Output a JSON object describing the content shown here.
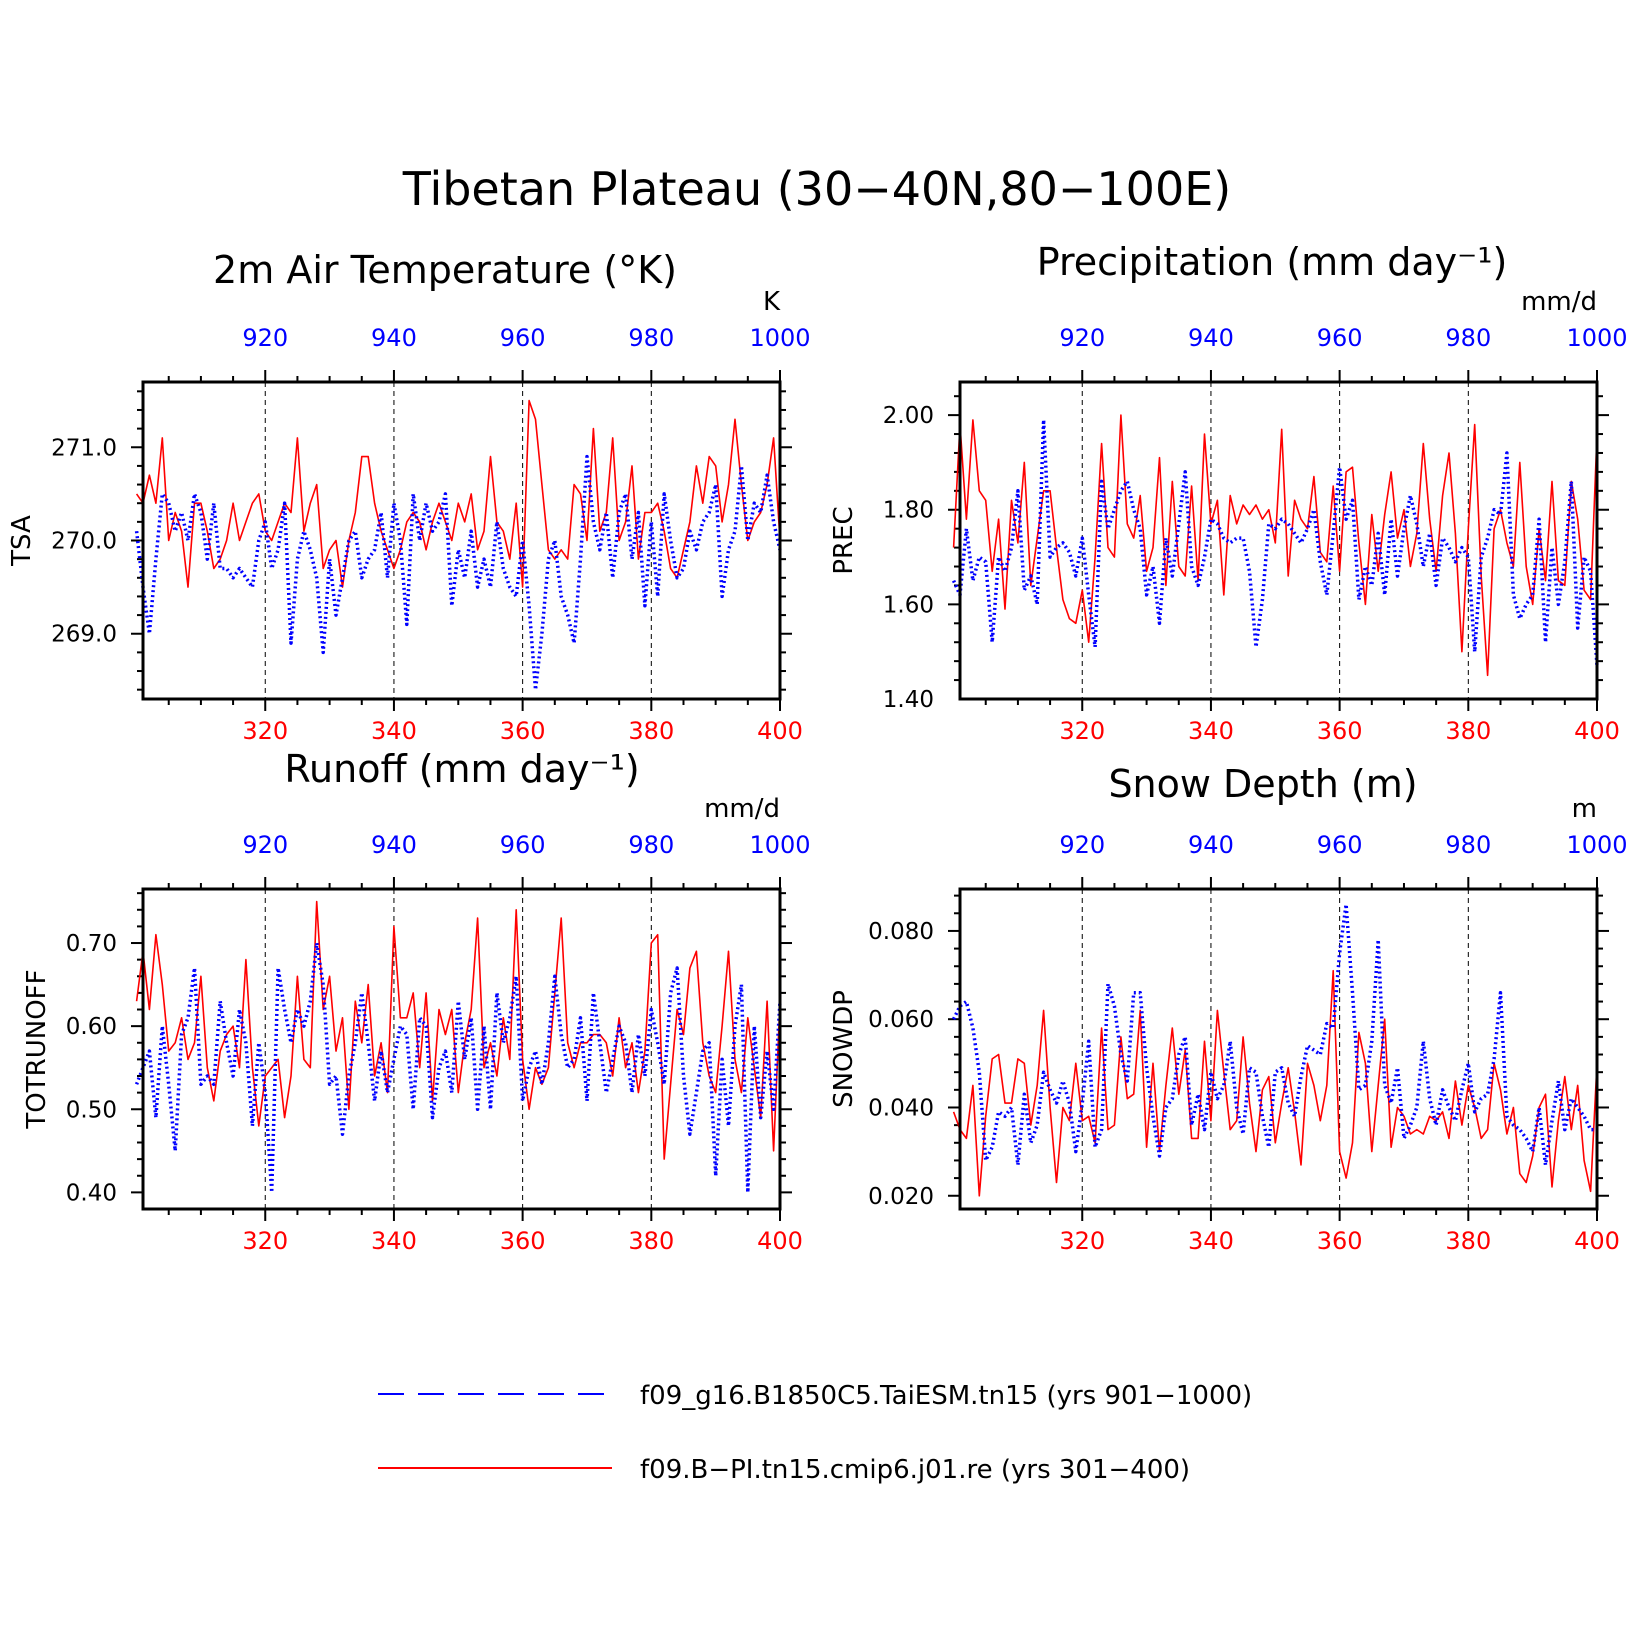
{
  "title": "Tibetan Plateau (30−40N,80−100E)",
  "colors": {
    "red": "#ff0000",
    "blue": "#0000ff",
    "axis": "#000000"
  },
  "legend": {
    "items": [
      {
        "label": "f09_g16.B1850C5.TaiESM.tn15 (yrs 901−1000)",
        "color": "#0000ff",
        "style": "dashed"
      },
      {
        "label": "f09.B−PI.tn15.cmip6.j01.re (yrs 301−400)",
        "color": "#ff0000",
        "style": "solid"
      }
    ]
  },
  "chart_data": [
    {
      "type": "line",
      "title": "2m Air Temperature (°K)",
      "ylabel": "TSA",
      "unit": "K",
      "ylim": [
        268.3,
        271.7
      ],
      "yticks": [
        "269.0",
        "270.0",
        "271.0"
      ],
      "x_bottom": {
        "range": [
          301,
          400
        ],
        "ticks": [
          320,
          340,
          360,
          380,
          400
        ],
        "color": "#ff0000"
      },
      "x_top": {
        "range": [
          901,
          1000
        ],
        "ticks": [
          920,
          940,
          960,
          980,
          1000
        ],
        "color": "#0000ff"
      },
      "series": [
        {
          "name": "f09.B−PI.tn15.cmip6.j01.re (yrs 301−400)",
          "color": "#ff0000",
          "style": "solid",
          "values": [
            270.5,
            270.4,
            270.7,
            270.4,
            271.1,
            270.0,
            270.3,
            270.1,
            269.5,
            270.4,
            270.4,
            270.1,
            269.7,
            269.8,
            270.0,
            270.4,
            270.0,
            270.2,
            270.4,
            270.5,
            270.1,
            270.0,
            270.2,
            270.4,
            270.3,
            271.1,
            270.1,
            270.4,
            270.6,
            269.7,
            269.9,
            270.0,
            269.5,
            270.0,
            270.3,
            270.9,
            270.9,
            270.4,
            270.1,
            269.9,
            269.7,
            269.9,
            270.2,
            270.3,
            270.2,
            269.9,
            270.2,
            270.4,
            270.2,
            270.0,
            270.4,
            270.2,
            270.5,
            269.9,
            270.1,
            270.9,
            270.2,
            270.1,
            269.8,
            270.4,
            269.5,
            271.5,
            271.3,
            270.6,
            269.9,
            269.8,
            269.9,
            269.8,
            270.6,
            270.5,
            270.0,
            271.2,
            270.1,
            270.3,
            271.1,
            270.0,
            270.2,
            270.8,
            269.8,
            270.3,
            270.3,
            270.4,
            270.1,
            269.7,
            269.6,
            269.9,
            270.2,
            270.8,
            270.4,
            270.9,
            270.8,
            270.2,
            270.6,
            271.3,
            270.6,
            270.0,
            270.2,
            270.3,
            270.6,
            271.1,
            270.0
          ]
        },
        {
          "name": "f09_g16.B1850C5.TaiESM.tn15 (yrs 901−1000)",
          "color": "#0000ff",
          "style": "dashed",
          "values": [
            270.1,
            269.5,
            269.0,
            269.8,
            270.5,
            270.4,
            270.1,
            270.3,
            270.0,
            270.5,
            270.3,
            269.8,
            270.4,
            269.7,
            269.7,
            269.6,
            269.7,
            269.6,
            269.5,
            270.0,
            270.2,
            269.7,
            269.9,
            270.4,
            268.9,
            269.8,
            270.1,
            269.9,
            269.6,
            268.8,
            269.8,
            269.2,
            269.6,
            270.0,
            270.1,
            269.6,
            269.8,
            269.9,
            270.3,
            269.6,
            270.4,
            270.0,
            269.1,
            270.5,
            270.0,
            270.4,
            270.1,
            270.2,
            270.5,
            269.3,
            269.9,
            269.6,
            270.1,
            269.5,
            269.8,
            269.5,
            270.2,
            269.7,
            269.5,
            269.4,
            270.0,
            269.3,
            268.4,
            269.0,
            269.8,
            270.0,
            269.4,
            269.2,
            268.9,
            269.8,
            270.9,
            270.2,
            269.9,
            270.3,
            269.6,
            270.3,
            270.5,
            269.8,
            270.3,
            269.3,
            270.2,
            269.4,
            270.5,
            270.0,
            269.6,
            269.7,
            270.1,
            269.9,
            270.2,
            270.3,
            270.6,
            269.4,
            269.9,
            270.1,
            270.8,
            270.0,
            270.4,
            270.3,
            270.7,
            270.2,
            269.9
          ]
        }
      ]
    },
    {
      "type": "line",
      "title": "Precipitation (mm day⁻¹)",
      "ylabel": "PREC",
      "unit": "mm/d",
      "ylim": [
        1.4,
        2.07
      ],
      "yticks": [
        "1.40",
        "1.60",
        "1.80",
        "2.00"
      ],
      "x_bottom": {
        "range": [
          301,
          400
        ],
        "ticks": [
          320,
          340,
          360,
          380,
          400
        ],
        "color": "#ff0000"
      },
      "x_top": {
        "range": [
          901,
          1000
        ],
        "ticks": [
          920,
          940,
          960,
          980,
          1000
        ],
        "color": "#0000ff"
      },
      "series": [
        {
          "name": "f09.B−PI.tn15.cmip6.j01.re (yrs 301−400)",
          "color": "#ff0000",
          "style": "solid",
          "values": [
            1.72,
            1.98,
            1.78,
            1.99,
            1.84,
            1.82,
            1.67,
            1.78,
            1.59,
            1.82,
            1.73,
            1.9,
            1.64,
            1.74,
            1.84,
            1.84,
            1.72,
            1.61,
            1.57,
            1.56,
            1.63,
            1.52,
            1.7,
            1.94,
            1.72,
            1.7,
            2.0,
            1.77,
            1.74,
            1.83,
            1.67,
            1.72,
            1.91,
            1.64,
            1.86,
            1.68,
            1.66,
            1.85,
            1.65,
            1.96,
            1.77,
            1.82,
            1.62,
            1.83,
            1.77,
            1.81,
            1.79,
            1.81,
            1.78,
            1.8,
            1.73,
            1.97,
            1.66,
            1.82,
            1.78,
            1.76,
            1.87,
            1.71,
            1.69,
            1.85,
            1.67,
            1.88,
            1.89,
            1.73,
            1.6,
            1.79,
            1.67,
            1.79,
            1.88,
            1.74,
            1.8,
            1.68,
            1.75,
            1.94,
            1.78,
            1.67,
            1.83,
            1.92,
            1.75,
            1.5,
            1.76,
            1.98,
            1.66,
            1.45,
            1.76,
            1.8,
            1.73,
            1.68,
            1.9,
            1.68,
            1.6,
            1.76,
            1.65,
            1.86,
            1.65,
            1.64,
            1.86,
            1.78,
            1.63,
            1.61,
            1.96
          ]
        },
        {
          "name": "f09_g16.B1850C5.TaiESM.tn15 (yrs 901−1000)",
          "color": "#0000ff",
          "style": "dashed",
          "values": [
            1.65,
            1.62,
            1.76,
            1.65,
            1.7,
            1.69,
            1.52,
            1.7,
            1.67,
            1.72,
            1.84,
            1.63,
            1.66,
            1.6,
            1.99,
            1.7,
            1.72,
            1.73,
            1.71,
            1.66,
            1.74,
            1.62,
            1.51,
            1.86,
            1.76,
            1.8,
            1.84,
            1.86,
            1.8,
            1.76,
            1.62,
            1.68,
            1.56,
            1.74,
            1.66,
            1.77,
            1.88,
            1.68,
            1.64,
            1.7,
            1.78,
            1.77,
            1.74,
            1.73,
            1.74,
            1.74,
            1.67,
            1.51,
            1.61,
            1.77,
            1.76,
            1.78,
            1.77,
            1.75,
            1.73,
            1.76,
            1.8,
            1.69,
            1.62,
            1.75,
            1.89,
            1.78,
            1.82,
            1.61,
            1.68,
            1.64,
            1.75,
            1.62,
            1.78,
            1.66,
            1.76,
            1.83,
            1.77,
            1.68,
            1.75,
            1.64,
            1.74,
            1.72,
            1.69,
            1.72,
            1.7,
            1.5,
            1.7,
            1.74,
            1.8,
            1.79,
            1.92,
            1.62,
            1.57,
            1.6,
            1.62,
            1.78,
            1.52,
            1.72,
            1.6,
            1.69,
            1.86,
            1.55,
            1.7,
            1.67,
            1.47
          ]
        }
      ]
    },
    {
      "type": "line",
      "title": "Runoff (mm day⁻¹)",
      "ylabel": "TOTRUNOFF",
      "unit": "mm/d",
      "ylim": [
        0.38,
        0.765
      ],
      "yticks": [
        "0.40",
        "0.50",
        "0.60",
        "0.70"
      ],
      "x_bottom": {
        "range": [
          301,
          400
        ],
        "ticks": [
          320,
          340,
          360,
          380,
          400
        ],
        "color": "#ff0000"
      },
      "x_top": {
        "range": [
          901,
          1000
        ],
        "ticks": [
          920,
          940,
          960,
          980,
          1000
        ],
        "color": "#0000ff"
      },
      "series": [
        {
          "name": "f09.B−PI.tn15.cmip6.j01.re (yrs 301−400)",
          "color": "#ff0000",
          "style": "solid",
          "values": [
            0.63,
            0.69,
            0.62,
            0.71,
            0.65,
            0.57,
            0.58,
            0.61,
            0.56,
            0.58,
            0.66,
            0.55,
            0.51,
            0.57,
            0.59,
            0.6,
            0.55,
            0.68,
            0.55,
            0.48,
            0.54,
            0.55,
            0.56,
            0.49,
            0.54,
            0.66,
            0.56,
            0.55,
            0.75,
            0.62,
            0.66,
            0.57,
            0.61,
            0.5,
            0.63,
            0.58,
            0.65,
            0.54,
            0.58,
            0.52,
            0.72,
            0.61,
            0.61,
            0.64,
            0.55,
            0.64,
            0.51,
            0.62,
            0.59,
            0.62,
            0.52,
            0.58,
            0.62,
            0.73,
            0.55,
            0.58,
            0.54,
            0.61,
            0.56,
            0.74,
            0.56,
            0.5,
            0.55,
            0.53,
            0.55,
            0.64,
            0.73,
            0.58,
            0.55,
            0.58,
            0.58,
            0.59,
            0.59,
            0.58,
            0.54,
            0.61,
            0.55,
            0.58,
            0.52,
            0.57,
            0.7,
            0.71,
            0.44,
            0.53,
            0.62,
            0.59,
            0.67,
            0.69,
            0.58,
            0.54,
            0.52,
            0.6,
            0.69,
            0.56,
            0.52,
            0.61,
            0.55,
            0.49,
            0.63,
            0.45,
            0.63
          ]
        },
        {
          "name": "f09_g16.B1850C5.TaiESM.tn15 (yrs 901−1000)",
          "color": "#0000ff",
          "style": "dashed",
          "values": [
            0.53,
            0.55,
            0.57,
            0.49,
            0.6,
            0.53,
            0.45,
            0.59,
            0.61,
            0.67,
            0.53,
            0.54,
            0.53,
            0.63,
            0.58,
            0.54,
            0.62,
            0.58,
            0.48,
            0.58,
            0.52,
            0.4,
            0.67,
            0.62,
            0.58,
            0.62,
            0.6,
            0.63,
            0.7,
            0.65,
            0.53,
            0.54,
            0.47,
            0.54,
            0.58,
            0.64,
            0.58,
            0.51,
            0.57,
            0.52,
            0.56,
            0.6,
            0.59,
            0.5,
            0.61,
            0.6,
            0.49,
            0.55,
            0.57,
            0.52,
            0.63,
            0.56,
            0.61,
            0.5,
            0.6,
            0.5,
            0.64,
            0.58,
            0.61,
            0.66,
            0.51,
            0.55,
            0.57,
            0.53,
            0.58,
            0.66,
            0.59,
            0.55,
            0.56,
            0.61,
            0.51,
            0.64,
            0.58,
            0.52,
            0.56,
            0.6,
            0.58,
            0.52,
            0.59,
            0.54,
            0.62,
            0.58,
            0.53,
            0.64,
            0.67,
            0.54,
            0.47,
            0.52,
            0.57,
            0.58,
            0.42,
            0.56,
            0.48,
            0.6,
            0.65,
            0.4,
            0.6,
            0.49,
            0.57,
            0.5,
            0.63
          ]
        }
      ]
    },
    {
      "type": "line",
      "title": "Snow Depth (m)",
      "ylabel": "SNOWDP",
      "unit": "m",
      "ylim": [
        0.017,
        0.0895
      ],
      "yticks": [
        "0.020",
        "0.040",
        "0.060",
        "0.080"
      ],
      "x_bottom": {
        "range": [
          301,
          400
        ],
        "ticks": [
          320,
          340,
          360,
          380,
          400
        ],
        "color": "#ff0000"
      },
      "x_top": {
        "range": [
          901,
          1000
        ],
        "ticks": [
          920,
          940,
          960,
          980,
          1000
        ],
        "color": "#0000ff"
      },
      "series": [
        {
          "name": "f09.B−PI.tn15.cmip6.j01.re (yrs 301−400)",
          "color": "#ff0000",
          "style": "solid",
          "values": [
            0.039,
            0.035,
            0.033,
            0.045,
            0.02,
            0.038,
            0.051,
            0.052,
            0.041,
            0.041,
            0.051,
            0.05,
            0.036,
            0.045,
            0.062,
            0.04,
            0.023,
            0.04,
            0.037,
            0.05,
            0.037,
            0.038,
            0.032,
            0.058,
            0.035,
            0.036,
            0.056,
            0.042,
            0.043,
            0.062,
            0.031,
            0.05,
            0.03,
            0.045,
            0.058,
            0.043,
            0.053,
            0.033,
            0.033,
            0.055,
            0.037,
            0.062,
            0.048,
            0.035,
            0.037,
            0.056,
            0.041,
            0.03,
            0.044,
            0.047,
            0.032,
            0.041,
            0.049,
            0.039,
            0.027,
            0.05,
            0.045,
            0.037,
            0.045,
            0.071,
            0.03,
            0.024,
            0.032,
            0.057,
            0.05,
            0.03,
            0.045,
            0.06,
            0.031,
            0.04,
            0.038,
            0.034,
            0.035,
            0.034,
            0.038,
            0.037,
            0.039,
            0.033,
            0.046,
            0.036,
            0.045,
            0.04,
            0.033,
            0.035,
            0.05,
            0.044,
            0.034,
            0.04,
            0.025,
            0.023,
            0.029,
            0.04,
            0.043,
            0.022,
            0.037,
            0.047,
            0.035,
            0.045,
            0.028,
            0.021,
            0.05
          ]
        },
        {
          "name": "f09_g16.B1850C5.TaiESM.tn15 (yrs 901−1000)",
          "color": "#0000ff",
          "style": "dashed",
          "values": [
            0.06,
            0.063,
            0.064,
            0.058,
            0.048,
            0.028,
            0.031,
            0.039,
            0.038,
            0.04,
            0.027,
            0.043,
            0.032,
            0.036,
            0.048,
            0.044,
            0.041,
            0.046,
            0.041,
            0.03,
            0.041,
            0.055,
            0.031,
            0.035,
            0.068,
            0.063,
            0.052,
            0.046,
            0.066,
            0.066,
            0.049,
            0.038,
            0.029,
            0.04,
            0.042,
            0.052,
            0.056,
            0.036,
            0.043,
            0.035,
            0.048,
            0.042,
            0.045,
            0.055,
            0.04,
            0.034,
            0.049,
            0.048,
            0.038,
            0.031,
            0.048,
            0.049,
            0.041,
            0.038,
            0.047,
            0.054,
            0.053,
            0.052,
            0.059,
            0.058,
            0.075,
            0.086,
            0.066,
            0.044,
            0.045,
            0.055,
            0.078,
            0.045,
            0.041,
            0.049,
            0.033,
            0.036,
            0.04,
            0.055,
            0.042,
            0.036,
            0.044,
            0.04,
            0.037,
            0.044,
            0.05,
            0.039,
            0.042,
            0.043,
            0.051,
            0.066,
            0.038,
            0.036,
            0.035,
            0.033,
            0.03,
            0.04,
            0.027,
            0.037,
            0.046,
            0.035,
            0.042,
            0.04,
            0.038,
            0.035,
            0.035
          ]
        }
      ]
    }
  ]
}
